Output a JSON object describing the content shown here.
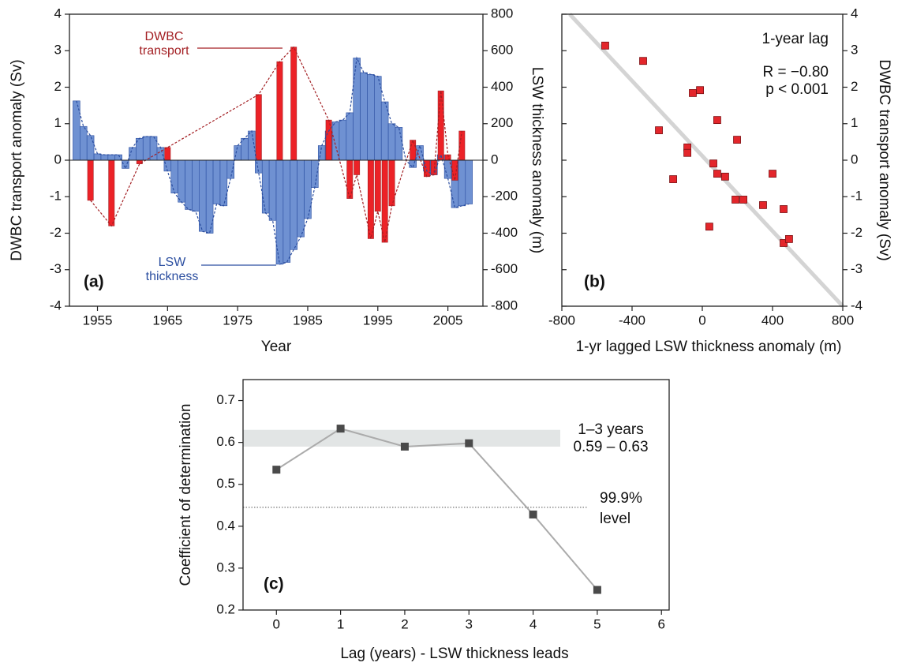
{
  "chart_data": [
    {
      "type": "bar-combo",
      "panel_label": "(a)",
      "x_label": "Year",
      "y_label": "DWBC transport  anomaly  (Sv)",
      "y2_label": "LSW thickness  anomaly  (m)",
      "xlim": [
        1951,
        2010
      ],
      "xticks": [
        1955,
        1965,
        1975,
        1985,
        1995,
        2005
      ],
      "ylim": [
        -4,
        4
      ],
      "yticks": [
        -4,
        -3,
        -2,
        -1,
        0,
        1,
        2,
        3,
        4
      ],
      "y2lim": [
        -800,
        800
      ],
      "y2ticks": [
        -800,
        -600,
        -400,
        -200,
        0,
        200,
        400,
        600,
        800
      ],
      "series": [
        {
          "name": "DWBC transport",
          "color": "#ec2227",
          "line_color": "#a31f23",
          "axis": "y",
          "x": [
            1954,
            1957,
            1961,
            1965,
            1978,
            1981,
            1983,
            1988,
            1991,
            1992,
            1994,
            1995,
            1996,
            1997,
            2000,
            2002,
            2003,
            2004,
            2005,
            2006,
            2007
          ],
          "values": [
            -1.1,
            -1.8,
            -0.1,
            0.35,
            1.8,
            2.7,
            3.1,
            1.1,
            -1.05,
            -0.4,
            -2.15,
            -1.4,
            -2.25,
            -1.25,
            0.55,
            -0.45,
            -0.4,
            1.9,
            0.15,
            -0.55,
            0.8
          ]
        },
        {
          "name": "LSW thickness",
          "color": "#6f91d2",
          "line_color": "#2b4ea0",
          "axis": "y2",
          "x": [
            1952,
            1953,
            1954,
            1955,
            1956,
            1957,
            1958,
            1959,
            1960,
            1961,
            1962,
            1963,
            1964,
            1965,
            1966,
            1967,
            1968,
            1969,
            1970,
            1971,
            1972,
            1973,
            1974,
            1975,
            1976,
            1977,
            1978,
            1979,
            1980,
            1981,
            1982,
            1983,
            1984,
            1985,
            1986,
            1987,
            1988,
            1989,
            1990,
            1991,
            1992,
            1993,
            1994,
            1995,
            1996,
            1997,
            1998,
            1999,
            2000,
            2001,
            2002,
            2003,
            2004,
            2005,
            2006,
            2007,
            2008
          ],
          "values": [
            325,
            185,
            135,
            35,
            30,
            30,
            30,
            -45,
            70,
            120,
            130,
            130,
            70,
            -60,
            -180,
            -230,
            -270,
            -280,
            -390,
            -400,
            -240,
            -250,
            -100,
            80,
            120,
            160,
            -70,
            -290,
            -330,
            -570,
            -560,
            -490,
            -420,
            -320,
            -150,
            80,
            160,
            210,
            220,
            260,
            560,
            480,
            470,
            460,
            320,
            200,
            180,
            0,
            -40,
            80,
            -60,
            -80,
            30,
            -100,
            -260,
            -250,
            -240
          ]
        }
      ]
    },
    {
      "type": "scatter",
      "panel_label": "(b)",
      "x_label": "1-yr lagged LSW thickness  anomaly (m)",
      "y2_label": "DWBC transport  anomaly  (Sv)",
      "annotations": [
        "1-year lag",
        "R = −0.80",
        "p < 0.001"
      ],
      "xlim": [
        -800,
        800
      ],
      "xticks": [
        -800,
        -400,
        0,
        400,
        800
      ],
      "ylim": [
        -4,
        4
      ],
      "yticks": [
        -4,
        -3,
        -2,
        -1,
        0,
        1,
        2,
        3,
        4
      ],
      "trend_line": {
        "x": [
          -755,
          800
        ],
        "y": [
          4,
          -4
        ],
        "color": "#d4d4d4"
      },
      "series": [
        {
          "color": "#e3262b",
          "x": [
            -553,
            -337,
            -247,
            -166,
            -85,
            -85,
            -54,
            -13,
            63,
            85,
            85,
            130,
            40,
            198,
            189,
            234,
            346,
            400,
            463,
            463,
            494
          ],
          "values": [
            3.14,
            2.72,
            0.82,
            -0.52,
            0.35,
            0.2,
            1.84,
            1.92,
            -0.09,
            1.1,
            -0.37,
            -0.45,
            -1.82,
            0.56,
            -1.08,
            -1.08,
            -1.23,
            -0.37,
            -1.34,
            -2.27,
            -2.16
          ]
        }
      ]
    },
    {
      "type": "line",
      "panel_label": "(c)",
      "x_label": "Lag (years) - LSW thickness leads",
      "y_label": "Coefficient  of  determination",
      "xlim": [
        -0.52,
        6.12
      ],
      "xticks": [
        0,
        1,
        2,
        3,
        4,
        5,
        6
      ],
      "ylim": [
        0.2,
        0.75
      ],
      "yticks": [
        0.2,
        0.3,
        0.4,
        0.5,
        0.6,
        0.7
      ],
      "band": {
        "y": [
          0.59,
          0.63
        ],
        "label": [
          "1–3 years",
          "0.59 – 0.63"
        ],
        "color": "#e2e5e5"
      },
      "threshold": {
        "value": 0.445,
        "label": [
          "99.9%",
          "level"
        ]
      },
      "x": [
        0,
        1,
        2,
        3,
        4,
        5
      ],
      "values": [
        0.535,
        0.633,
        0.59,
        0.598,
        0.428,
        0.248
      ],
      "color": "#ababab",
      "marker_color": "#4a4a4a"
    }
  ]
}
